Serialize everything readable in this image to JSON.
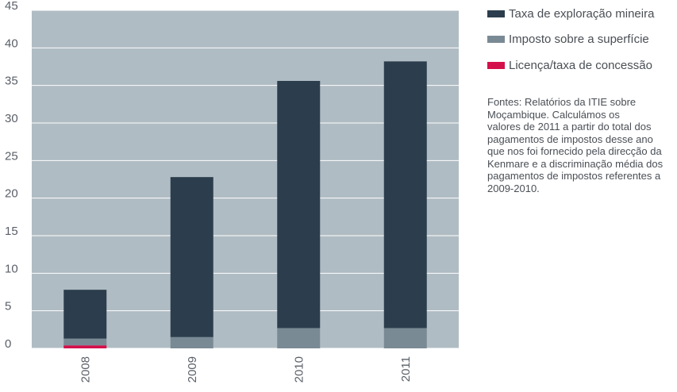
{
  "chart_data": {
    "type": "bar",
    "stacked": true,
    "categories": [
      "2008",
      "2009",
      "2010",
      "2011"
    ],
    "series": [
      {
        "name": "Licença/taxa de concessão",
        "color": "#d4104a",
        "values": [
          0.4,
          0,
          0,
          0
        ]
      },
      {
        "name": "Imposto sobre a superfície",
        "color": "#7a8a95",
        "values": [
          0.9,
          1.5,
          2.7,
          2.7
        ]
      },
      {
        "name": "Taxa de exploração mineira",
        "color": "#2c3e4d",
        "values": [
          6.5,
          21.3,
          32.9,
          35.5
        ]
      }
    ],
    "yticks": [
      "0",
      "5",
      "10",
      "15",
      "20",
      "25",
      "30",
      "35",
      "40",
      "45"
    ],
    "ylim": [
      0,
      45
    ],
    "grid": true,
    "plot_background": "#b0bcc3",
    "legend_position": "right",
    "note": "Fontes: Relatórios da ITIE sobre\nMoçambique. Calculámos os\nvalores de 2011 a partir do total dos\npagamentos de impostos desse ano\nque nos foi fornecido pela direcção da\nKenmare e a discriminação média dos\npagamentos de impostos referentes a\n2009-2010."
  }
}
